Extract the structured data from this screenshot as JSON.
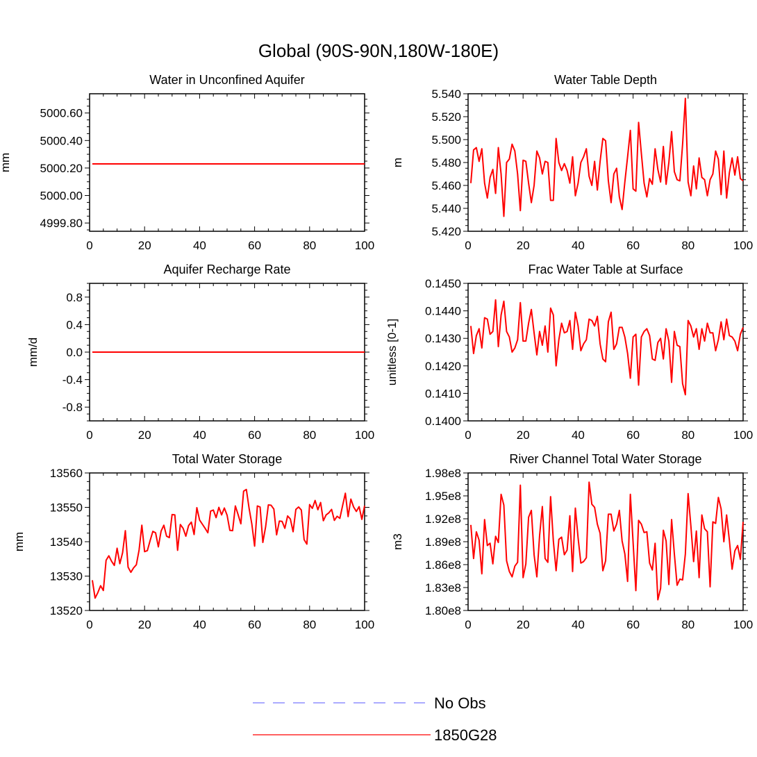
{
  "figure": {
    "title": "Global (90S-90N,180W-180E)"
  },
  "legend": {
    "placement": "bottom-center",
    "entries": [
      {
        "label": "No Obs",
        "color": "#7777ff",
        "style": "dashed"
      },
      {
        "label": "1850G28",
        "color": "#ff0000",
        "style": "solid"
      }
    ]
  },
  "colors": {
    "series": "#ff0000",
    "axis": "#000000"
  },
  "chart_data": [
    {
      "type": "line",
      "title": "Water in Unconfined Aquifer",
      "xlabel": "",
      "ylabel": "mm",
      "xlim": [
        0,
        100
      ],
      "ylim": [
        4999.74,
        5000.74
      ],
      "xticks": [
        0,
        20,
        40,
        60,
        80,
        100
      ],
      "yticks": [
        4999.8,
        5000.0,
        5000.2,
        5000.4,
        5000.6
      ],
      "ytick_labels": [
        "4999.80",
        "5000.00",
        "5000.20",
        "5000.40",
        "5000.60"
      ],
      "series": [
        {
          "name": "1850G28",
          "x": [
            1,
            100
          ],
          "values": [
            5000.23,
            5000.23
          ]
        }
      ]
    },
    {
      "type": "line",
      "title": "Water Table Depth",
      "xlabel": "",
      "ylabel": "m",
      "xlim": [
        0,
        100
      ],
      "ylim": [
        5.42,
        5.54
      ],
      "xticks": [
        0,
        20,
        40,
        60,
        80,
        100
      ],
      "yticks": [
        5.42,
        5.44,
        5.46,
        5.48,
        5.5,
        5.52,
        5.54
      ],
      "ytick_labels": [
        "5.420",
        "5.440",
        "5.460",
        "5.480",
        "5.500",
        "5.520",
        "5.540"
      ],
      "series": [
        {
          "name": "1850G28",
          "x_start": 1,
          "values": [
            5.462,
            5.491,
            5.493,
            5.481,
            5.492,
            5.462,
            5.449,
            5.467,
            5.474,
            5.453,
            5.493,
            5.47,
            5.433,
            5.48,
            5.483,
            5.496,
            5.49,
            5.47,
            5.438,
            5.482,
            5.481,
            5.462,
            5.445,
            5.46,
            5.49,
            5.484,
            5.47,
            5.481,
            5.48,
            5.447,
            5.447,
            5.501,
            5.48,
            5.473,
            5.479,
            5.473,
            5.462,
            5.485,
            5.451,
            5.462,
            5.48,
            5.485,
            5.492,
            5.468,
            5.46,
            5.481,
            5.456,
            5.481,
            5.501,
            5.499,
            5.464,
            5.445,
            5.47,
            5.475,
            5.45,
            5.439,
            5.463,
            5.485,
            5.508,
            5.457,
            5.455,
            5.515,
            5.488,
            5.462,
            5.45,
            5.466,
            5.461,
            5.492,
            5.474,
            5.463,
            5.494,
            5.461,
            5.48,
            5.507,
            5.472,
            5.465,
            5.464,
            5.496,
            5.536,
            5.463,
            5.451,
            5.477,
            5.457,
            5.484,
            5.467,
            5.465,
            5.451,
            5.465,
            5.47,
            5.49,
            5.483,
            5.452,
            5.49,
            5.449,
            5.471,
            5.484,
            5.469,
            5.485,
            5.466,
            5.464
          ]
        }
      ]
    },
    {
      "type": "line",
      "title": "Aquifer Recharge Rate",
      "xlabel": "",
      "ylabel": "mm/d",
      "xlim": [
        0,
        100
      ],
      "ylim": [
        -1.0,
        1.0
      ],
      "xticks": [
        0,
        20,
        40,
        60,
        80,
        100
      ],
      "yticks": [
        -0.8,
        -0.4,
        0.0,
        0.4,
        0.8
      ],
      "ytick_labels": [
        "-0.8",
        "-0.4",
        "0.0",
        "0.4",
        "0.8"
      ],
      "series": [
        {
          "name": "1850G28",
          "x": [
            1,
            100
          ],
          "values": [
            0.0,
            0.0
          ]
        }
      ]
    },
    {
      "type": "line",
      "title": "Frac Water Table at Surface",
      "xlabel": "",
      "ylabel": "unitless [0-1]",
      "xlim": [
        0,
        100
      ],
      "ylim": [
        0.14,
        0.145
      ],
      "xticks": [
        0,
        20,
        40,
        60,
        80,
        100
      ],
      "yticks": [
        0.14,
        0.141,
        0.142,
        0.143,
        0.144,
        0.145
      ],
      "ytick_labels": [
        "0.1400",
        "0.1410",
        "0.1420",
        "0.1430",
        "0.1440",
        "0.1450"
      ],
      "series": [
        {
          "name": "1850G28",
          "x_start": 1,
          "values": [
            0.14345,
            0.14245,
            0.1431,
            0.14335,
            0.14265,
            0.14375,
            0.1437,
            0.14315,
            0.14325,
            0.1444,
            0.1427,
            0.14385,
            0.14435,
            0.14325,
            0.14305,
            0.1425,
            0.14265,
            0.14295,
            0.1443,
            0.1429,
            0.1429,
            0.14355,
            0.14405,
            0.1432,
            0.1424,
            0.14325,
            0.14275,
            0.14345,
            0.1425,
            0.1441,
            0.14385,
            0.142,
            0.14295,
            0.14355,
            0.1432,
            0.14325,
            0.14365,
            0.1426,
            0.14395,
            0.14345,
            0.14255,
            0.1428,
            0.14295,
            0.1437,
            0.14365,
            0.14345,
            0.1438,
            0.1428,
            0.14225,
            0.14215,
            0.1436,
            0.14395,
            0.1426,
            0.1428,
            0.1434,
            0.1434,
            0.14305,
            0.14245,
            0.14155,
            0.14305,
            0.14315,
            0.1413,
            0.14305,
            0.14325,
            0.14335,
            0.1431,
            0.14225,
            0.1422,
            0.14285,
            0.143,
            0.14225,
            0.14335,
            0.1429,
            0.1414,
            0.14325,
            0.14275,
            0.1427,
            0.14135,
            0.14095,
            0.14365,
            0.14345,
            0.14305,
            0.14335,
            0.1426,
            0.14335,
            0.1429,
            0.14355,
            0.1432,
            0.1432,
            0.14255,
            0.14295,
            0.1436,
            0.14295,
            0.1437,
            0.1431,
            0.14305,
            0.1429,
            0.14255,
            0.14315,
            0.1434
          ]
        }
      ]
    },
    {
      "type": "line",
      "title": "Total Water Storage",
      "xlabel": "",
      "ylabel": "mm",
      "xlim": [
        0,
        100
      ],
      "ylim": [
        13520,
        13560
      ],
      "xticks": [
        0,
        20,
        40,
        60,
        80,
        100
      ],
      "yticks": [
        13520,
        13530,
        13540,
        13550,
        13560
      ],
      "ytick_labels": [
        "13520",
        "13530",
        "13540",
        "13550",
        "13560"
      ],
      "series": [
        {
          "name": "1850G28",
          "x_start": 1,
          "values": [
            13528.8,
            13523.6,
            13525.2,
            13527.2,
            13525.8,
            13534.6,
            13535.9,
            13534.3,
            13533.1,
            13538.1,
            13533.6,
            13536.8,
            13543.2,
            13532.6,
            13531.1,
            13532.4,
            13533.3,
            13537.6,
            13544.8,
            13537.1,
            13537.4,
            13540.3,
            13543.0,
            13542.6,
            13538.5,
            13543.1,
            13544.8,
            13541.6,
            13541.2,
            13547.9,
            13547.8,
            13537.5,
            13545.0,
            13543.9,
            13541.6,
            13544.7,
            13545.7,
            13542.1,
            13549.9,
            13546.3,
            13545.1,
            13543.9,
            13542.6,
            13548.9,
            13549.2,
            13547.0,
            13550.0,
            13547.8,
            13549.8,
            13547.7,
            13543.3,
            13543.2,
            13550.4,
            13547.9,
            13545.2,
            13554.7,
            13555.2,
            13549.7,
            13545.1,
            13538.7,
            13550.4,
            13550.1,
            13539.8,
            13544.3,
            13550.7,
            13550.6,
            13549.5,
            13542.0,
            13546.0,
            13545.9,
            13543.9,
            13547.5,
            13546.6,
            13542.9,
            13549.4,
            13550.1,
            13549.2,
            13540.6,
            13539.3,
            13550.8,
            13549.7,
            13552.0,
            13549.3,
            13551.4,
            13546.1,
            13547.8,
            13548.4,
            13549.4,
            13546.2,
            13547.4,
            13546.8,
            13550.5,
            13554.1,
            13547.3,
            13552.4,
            13550.1,
            13548.8,
            13550.2,
            13546.5,
            13550.5
          ]
        }
      ]
    },
    {
      "type": "line",
      "title": "River Channel Total Water Storage",
      "xlabel": "",
      "ylabel": "m3",
      "xlim": [
        0,
        100
      ],
      "ylim": [
        180000000.0,
        198000000.0
      ],
      "xticks": [
        0,
        20,
        40,
        60,
        80,
        100
      ],
      "yticks": [
        180000000.0,
        183000000.0,
        186000000.0,
        189000000.0,
        192000000.0,
        195000000.0,
        198000000.0
      ],
      "ytick_labels": [
        "1.80e8",
        "1.83e8",
        "1.86e8",
        "1.89e8",
        "1.92e8",
        "1.95e8",
        "1.98e8"
      ],
      "series": [
        {
          "name": "1850G28",
          "x_start": 1,
          "values": [
            191200000.0,
            186800000.0,
            190300000.0,
            189200000.0,
            184800000.0,
            191900000.0,
            188500000.0,
            188800000.0,
            186100000.0,
            189700000.0,
            188900000.0,
            195200000.0,
            193800000.0,
            186500000.0,
            185100000.0,
            184400000.0,
            185800000.0,
            186300000.0,
            196400000.0,
            184300000.0,
            186100000.0,
            192200000.0,
            193100000.0,
            187300000.0,
            184400000.0,
            189800000.0,
            193600000.0,
            186800000.0,
            186300000.0,
            194900000.0,
            189100000.0,
            185200000.0,
            189300000.0,
            189600000.0,
            187300000.0,
            187900000.0,
            192400000.0,
            185100000.0,
            193400000.0,
            189500000.0,
            186200000.0,
            186400000.0,
            186900000.0,
            196800000.0,
            193900000.0,
            193500000.0,
            191300000.0,
            190100000.0,
            185200000.0,
            186500000.0,
            192600000.0,
            192600000.0,
            190400000.0,
            191300000.0,
            193100000.0,
            189100000.0,
            187400000.0,
            183800000.0,
            195200000.0,
            188900000.0,
            182600000.0,
            191800000.0,
            191300000.0,
            190200000.0,
            190300000.0,
            186200000.0,
            185300000.0,
            188800000.0,
            181400000.0,
            182900000.0,
            190500000.0,
            189100000.0,
            183400000.0,
            191900000.0,
            187400000.0,
            183300000.0,
            184100000.0,
            184000000.0,
            187400000.0,
            195300000.0,
            191100000.0,
            186400000.0,
            190400000.0,
            184300000.0,
            192500000.0,
            190700000.0,
            190300000.0,
            183100000.0,
            191600000.0,
            191400000.0,
            194800000.0,
            193300000.0,
            189000000.0,
            192500000.0,
            189200000.0,
            185400000.0,
            187800000.0,
            188500000.0,
            186700000.0,
            191600000.0
          ]
        }
      ]
    }
  ]
}
